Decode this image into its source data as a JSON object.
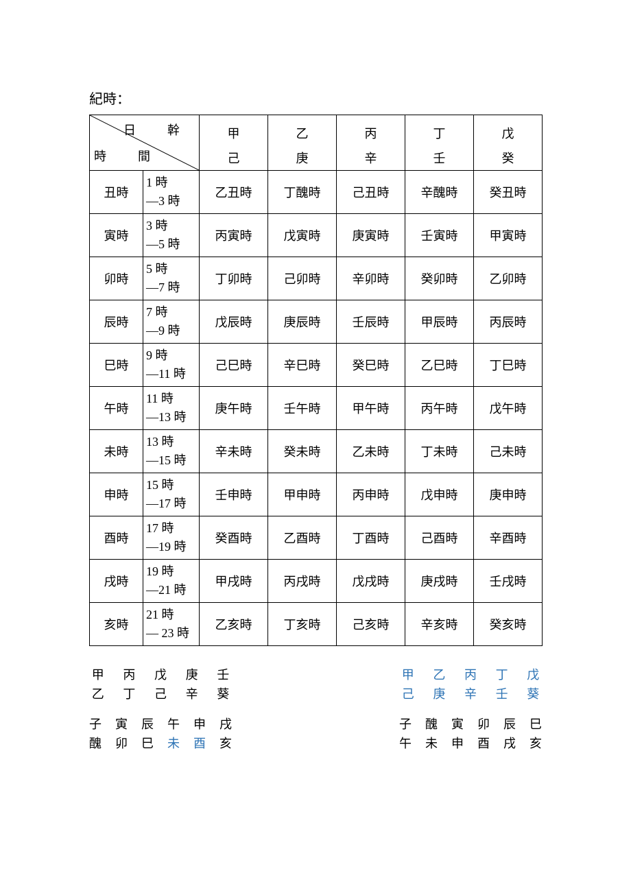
{
  "title": "紀時：",
  "header": {
    "diag_top": "日　幹",
    "diag_bottom": "時　間",
    "cols": [
      {
        "top": "甲",
        "bot": "己"
      },
      {
        "top": "乙",
        "bot": "庚"
      },
      {
        "top": "丙",
        "bot": "辛"
      },
      {
        "top": "丁",
        "bot": "壬"
      },
      {
        "top": "戊",
        "bot": "癸"
      }
    ]
  },
  "rows": [
    {
      "label": "丑時",
      "time1": "1 時",
      "time2": "—3 時",
      "cells": [
        "乙丑時",
        "丁醜時",
        "己丑時",
        "辛醜時",
        "癸丑時"
      ]
    },
    {
      "label": "寅時",
      "time1": "3 時",
      "time2": "—5 時",
      "cells": [
        "丙寅時",
        "戊寅時",
        "庚寅時",
        "壬寅時",
        "甲寅時"
      ]
    },
    {
      "label": "卯時",
      "time1": "5 時",
      "time2": "—7 時",
      "cells": [
        "丁卯時",
        "己卯時",
        "辛卯時",
        "癸卯時",
        "乙卯時"
      ]
    },
    {
      "label": "辰時",
      "time1": "7 時",
      "time2": "—9 時",
      "cells": [
        "戊辰時",
        "庚辰時",
        "壬辰時",
        "甲辰時",
        "丙辰時"
      ]
    },
    {
      "label": "巳時",
      "time1": "9 時",
      "time2": "—11 時",
      "cells": [
        "己巳時",
        "辛巳時",
        "癸巳時",
        "乙巳時",
        "丁巳時"
      ]
    },
    {
      "label": "午時",
      "time1": "11 時",
      "time2": "—13 時",
      "cells": [
        "庚午時",
        "壬午時",
        "甲午時",
        "丙午時",
        "戊午時"
      ]
    },
    {
      "label": "未時",
      "time1": "13 時",
      "time2": "—15 時",
      "cells": [
        "辛未時",
        "癸未時",
        "乙未時",
        "丁未時",
        "己未時"
      ]
    },
    {
      "label": "申時",
      "time1": "15 時",
      "time2": "—17 時",
      "cells": [
        "壬申時",
        "甲申時",
        "丙申時",
        "戊申時",
        "庚申時"
      ]
    },
    {
      "label": "酉時",
      "time1": "17 時",
      "time2": "—19 時",
      "cells": [
        "癸酉時",
        "乙酉時",
        "丁酉時",
        "己酉時",
        "辛酉時"
      ]
    },
    {
      "label": "戌時",
      "time1": "19 時",
      "time2": "—21 時",
      "cells": [
        "甲戌時",
        "丙戌時",
        "戊戌時",
        "庚戌時",
        "壬戌時"
      ]
    },
    {
      "label": "亥時",
      "time1": "21 時",
      "time2": "— 23 時",
      "cells": [
        "乙亥時",
        "丁亥時",
        "己亥時",
        "辛亥時",
        "癸亥時"
      ]
    }
  ],
  "bottom": {
    "left_top": {
      "row1": [
        {
          "t": "甲"
        },
        {
          "t": "丙"
        },
        {
          "t": "戊"
        },
        {
          "t": "庚"
        },
        {
          "t": "壬"
        }
      ],
      "row2": [
        {
          "t": "乙"
        },
        {
          "t": "丁"
        },
        {
          "t": "己"
        },
        {
          "t": "辛"
        },
        {
          "t": "葵"
        }
      ]
    },
    "right_top": {
      "row1": [
        {
          "t": "甲",
          "c": "blue"
        },
        {
          "t": "乙",
          "c": "blue"
        },
        {
          "t": "丙",
          "c": "blue"
        },
        {
          "t": "丁",
          "c": "blue"
        },
        {
          "t": "戊",
          "c": "blue"
        }
      ],
      "row2": [
        {
          "t": "己",
          "c": "blue"
        },
        {
          "t": "庚",
          "c": "blue"
        },
        {
          "t": "辛",
          "c": "blue"
        },
        {
          "t": "壬",
          "c": "blue"
        },
        {
          "t": "葵",
          "c": "blue"
        }
      ]
    },
    "left_bot": {
      "row1": [
        {
          "t": "子"
        },
        {
          "t": "寅"
        },
        {
          "t": "辰"
        },
        {
          "t": "午"
        },
        {
          "t": "申"
        },
        {
          "t": "戌"
        }
      ],
      "row2": [
        {
          "t": "醜"
        },
        {
          "t": "卯"
        },
        {
          "t": "巳"
        },
        {
          "t": "未",
          "c": "blue"
        },
        {
          "t": "酉",
          "c": "blue"
        },
        {
          "t": "亥"
        }
      ]
    },
    "right_bot": {
      "row1": [
        {
          "t": "子"
        },
        {
          "t": "醜"
        },
        {
          "t": "寅"
        },
        {
          "t": "卯"
        },
        {
          "t": "辰"
        },
        {
          "t": "巳"
        }
      ],
      "row2": [
        {
          "t": "午"
        },
        {
          "t": "未"
        },
        {
          "t": "申"
        },
        {
          "t": "酉"
        },
        {
          "t": "戌"
        },
        {
          "t": "亥"
        }
      ]
    }
  },
  "colors": {
    "text": "#000000",
    "link_blue": "#2e74b5",
    "border": "#000000",
    "background": "#ffffff"
  }
}
